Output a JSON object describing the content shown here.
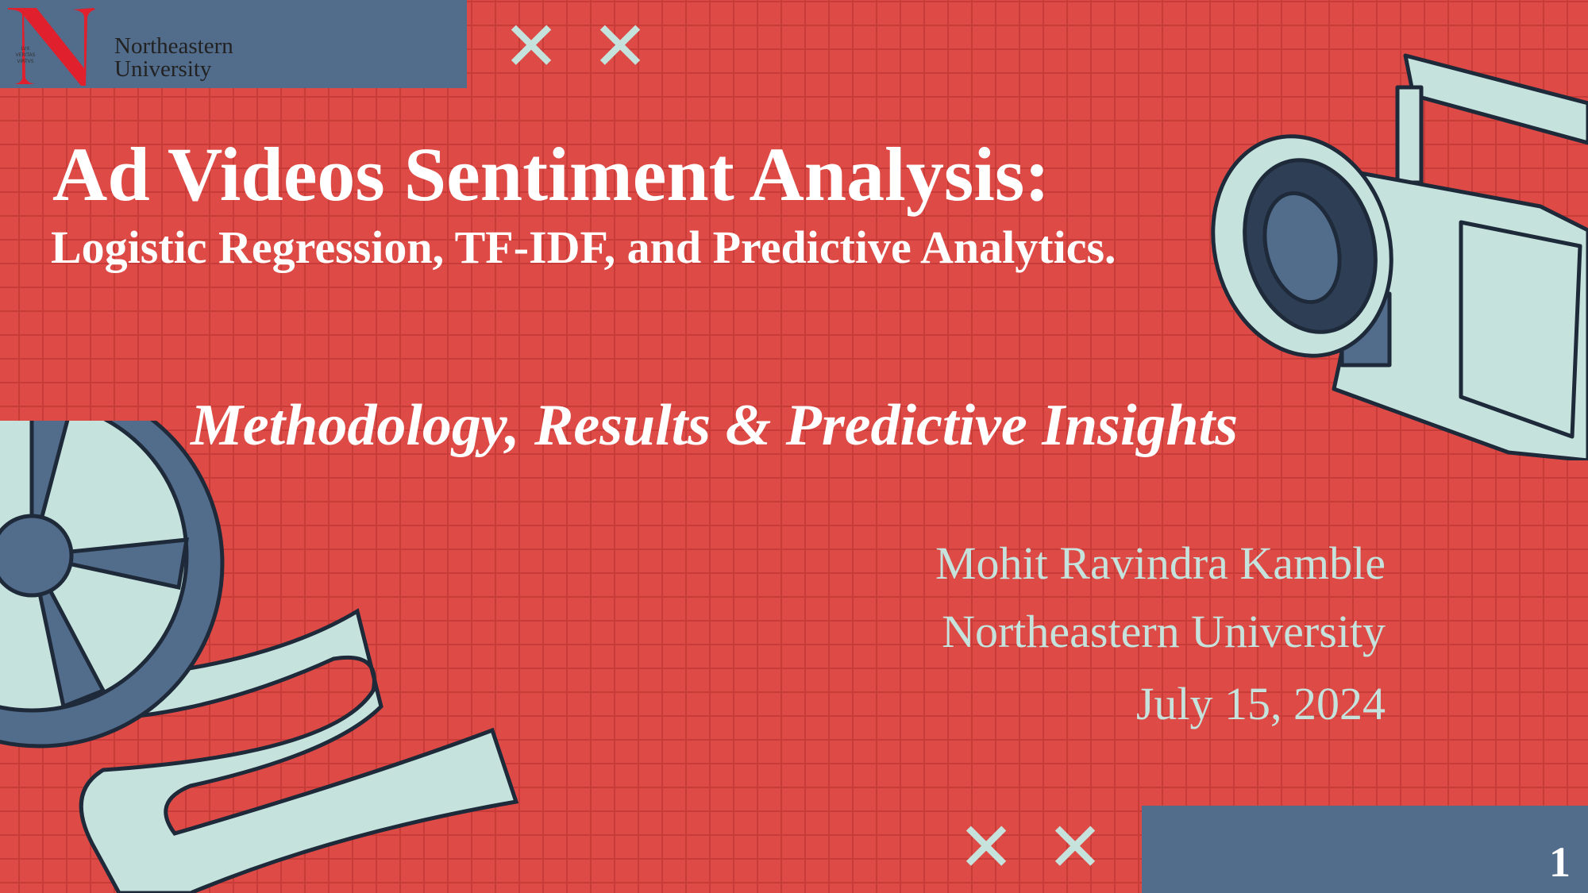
{
  "header": {
    "logo_motto": [
      "LVX",
      "VERITAS",
      "VIRTVS"
    ],
    "logo_text_line1": "Northeastern",
    "logo_text_line2": "University"
  },
  "slide": {
    "title": "Ad Videos Sentiment Analysis:",
    "subtitle": "Logistic Regression, TF-IDF, and Predictive Analytics.",
    "tagline": "Methodology, Results & Predictive Insights",
    "author": "Mohit Ravindra Kamble",
    "affiliation": "Northeastern University",
    "date": "July 15, 2024",
    "page_number": "1"
  },
  "decor": {
    "x_mark": "✕",
    "icons": [
      "film-camera-icon",
      "film-reel-icon",
      "x-mark-icon"
    ]
  },
  "colors": {
    "background": "#de4a45",
    "grid": "#c73c39",
    "blue": "#526c8c",
    "mint": "#c5e3dc",
    "logo_red": "#e0202c"
  }
}
